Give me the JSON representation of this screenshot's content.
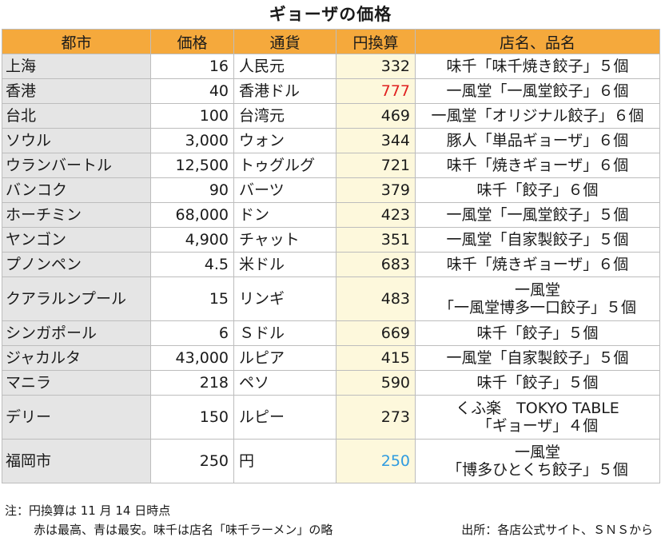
{
  "chart_data": {
    "type": "table",
    "title": "ギョーザの価格",
    "columns": [
      "都市",
      "価格",
      "通貨",
      "円換算",
      "店名、品名"
    ],
    "rows": [
      {
        "city": "上海",
        "price": "16",
        "currency": "人民元",
        "yen": "332",
        "shop": [
          "味千「味千焼き餃子」５個"
        ]
      },
      {
        "city": "香港",
        "price": "40",
        "currency": "香港ドル",
        "yen": "777",
        "shop": [
          "一風堂「一風堂餃子」６個"
        ],
        "highlight": "max"
      },
      {
        "city": "台北",
        "price": "100",
        "currency": "台湾元",
        "yen": "469",
        "shop": [
          "一風堂「オリジナル餃子」６個"
        ]
      },
      {
        "city": "ソウル",
        "price": "3,000",
        "currency": "ウォン",
        "yen": "344",
        "shop": [
          "豚人「単品ギョーザ」６個"
        ]
      },
      {
        "city": "ウランバートル",
        "price": "12,500",
        "currency": "トゥグルグ",
        "yen": "721",
        "shop": [
          "味千「焼きギョーザ」６個"
        ]
      },
      {
        "city": "バンコク",
        "price": "90",
        "currency": "バーツ",
        "yen": "379",
        "shop": [
          "味千「餃子」６個"
        ]
      },
      {
        "city": "ホーチミン",
        "price": "68,000",
        "currency": "ドン",
        "yen": "423",
        "shop": [
          "一風堂「一風堂餃子」５個"
        ]
      },
      {
        "city": "ヤンゴン",
        "price": "4,900",
        "currency": "チャット",
        "yen": "351",
        "shop": [
          "一風堂「自家製餃子」５個"
        ]
      },
      {
        "city": "プノンペン",
        "price": "4.5",
        "currency": "米ドル",
        "yen": "683",
        "shop": [
          "味千「焼きギョーザ」６個"
        ]
      },
      {
        "city": "クアラルンプール",
        "price": "15",
        "currency": "リンギ",
        "yen": "483",
        "shop": [
          "一風堂",
          "「一風堂博多一口餃子」５個"
        ]
      },
      {
        "city": "シンガポール",
        "price": "6",
        "currency": "Ｓドル",
        "yen": "669",
        "shop": [
          "味千「餃子」５個"
        ]
      },
      {
        "city": "ジャカルタ",
        "price": "43,000",
        "currency": "ルピア",
        "yen": "415",
        "shop": [
          "一風堂「自家製餃子」５個"
        ]
      },
      {
        "city": "マニラ",
        "price": "218",
        "currency": "ペソ",
        "yen": "590",
        "shop": [
          "味千「餃子」５個"
        ]
      },
      {
        "city": "デリー",
        "price": "150",
        "currency": "ルピー",
        "yen": "273",
        "shop": [
          "くふ楽　TOKYO TABLE",
          "「ギョーザ」４個"
        ]
      },
      {
        "city": "福岡市",
        "price": "250",
        "currency": "円",
        "yen": "250",
        "shop": [
          "一風堂",
          "「博多ひとくち餃子」５個"
        ],
        "highlight": "min"
      }
    ],
    "highlight_colors": {
      "max": "#e02020",
      "min": "#2f9be0"
    },
    "header_color": "#f5a93c"
  },
  "notes": {
    "line1": "注：円換算は 11 月 14 日時点",
    "line2": "赤は最高、青は最安。味千は店名「味千ラーメン」の略",
    "source": "出所：各店公式サイト、ＳＮＳから"
  }
}
